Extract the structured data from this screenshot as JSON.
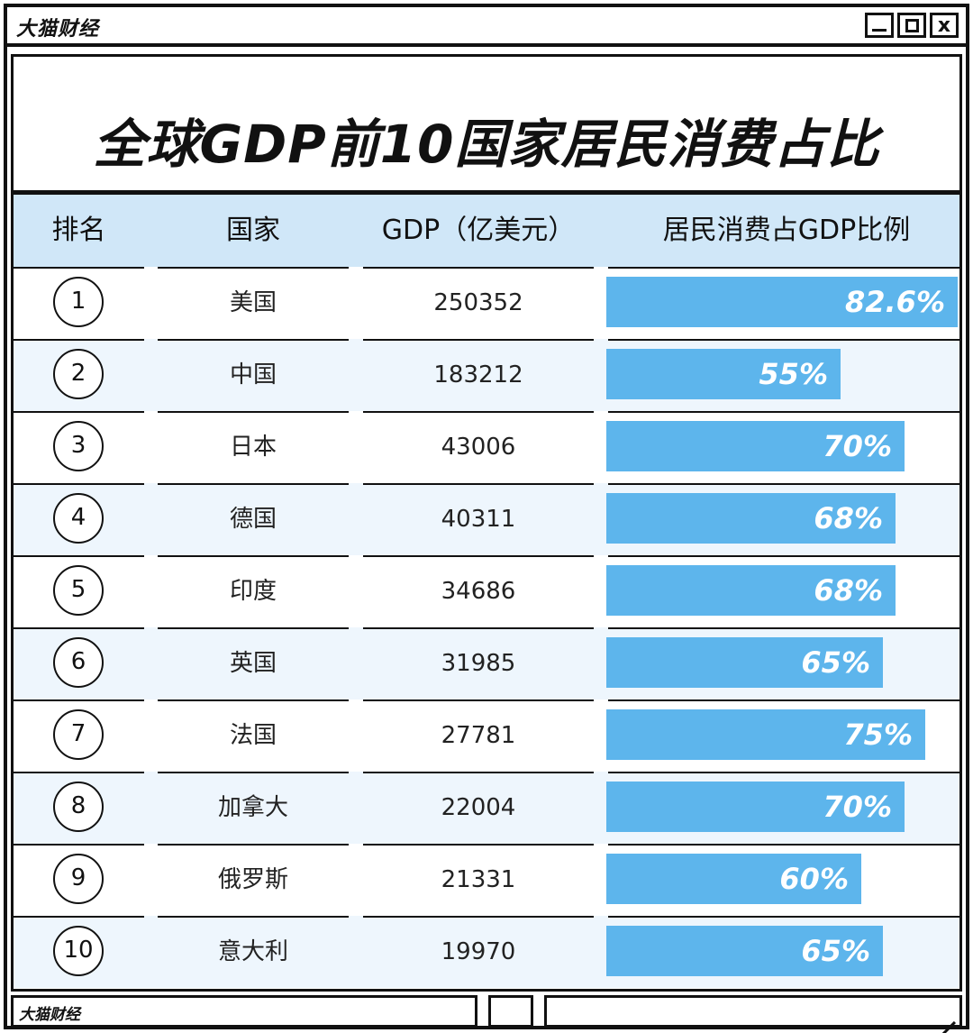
{
  "window": {
    "brand": "大猫财经",
    "controls": [
      "minimize",
      "maximize",
      "close"
    ],
    "close_glyph": "x"
  },
  "title": "全球GDP前10国家居民消费占比",
  "columns": [
    "排名",
    "国家",
    "GDP（亿美元）",
    "居民消费占GDP比例"
  ],
  "chart_data": {
    "type": "table",
    "title": "全球GDP前10国家居民消费占比",
    "columns": [
      "排名",
      "国家",
      "GDP（亿美元）",
      "居民消费占GDP比例"
    ],
    "rows": [
      {
        "rank": "1",
        "country": "美国",
        "gdp": "250352",
        "share": 82.6,
        "share_label": "82.6%"
      },
      {
        "rank": "2",
        "country": "中国",
        "gdp": "183212",
        "share": 55,
        "share_label": "55%"
      },
      {
        "rank": "3",
        "country": "日本",
        "gdp": "43006",
        "share": 70,
        "share_label": "70%"
      },
      {
        "rank": "4",
        "country": "德国",
        "gdp": "40311",
        "share": 68,
        "share_label": "68%"
      },
      {
        "rank": "5",
        "country": "印度",
        "gdp": "34686",
        "share": 68,
        "share_label": "68%"
      },
      {
        "rank": "6",
        "country": "英国",
        "gdp": "31985",
        "share": 65,
        "share_label": "65%"
      },
      {
        "rank": "7",
        "country": "法国",
        "gdp": "27781",
        "share": 75,
        "share_label": "75%"
      },
      {
        "rank": "8",
        "country": "加拿大",
        "gdp": "22004",
        "share": 70,
        "share_label": "70%"
      },
      {
        "rank": "9",
        "country": "俄罗斯",
        "gdp": "21331",
        "share": 60,
        "share_label": "60%"
      },
      {
        "rank": "10",
        "country": "意大利",
        "gdp": "19970",
        "share": 65,
        "share_label": "65%"
      }
    ],
    "bar_color": "#5db5ec",
    "header_bg": "#d0e7f8",
    "alt_row_bg": "#eef6fd"
  },
  "footer": {
    "brand": "大猫财经"
  }
}
